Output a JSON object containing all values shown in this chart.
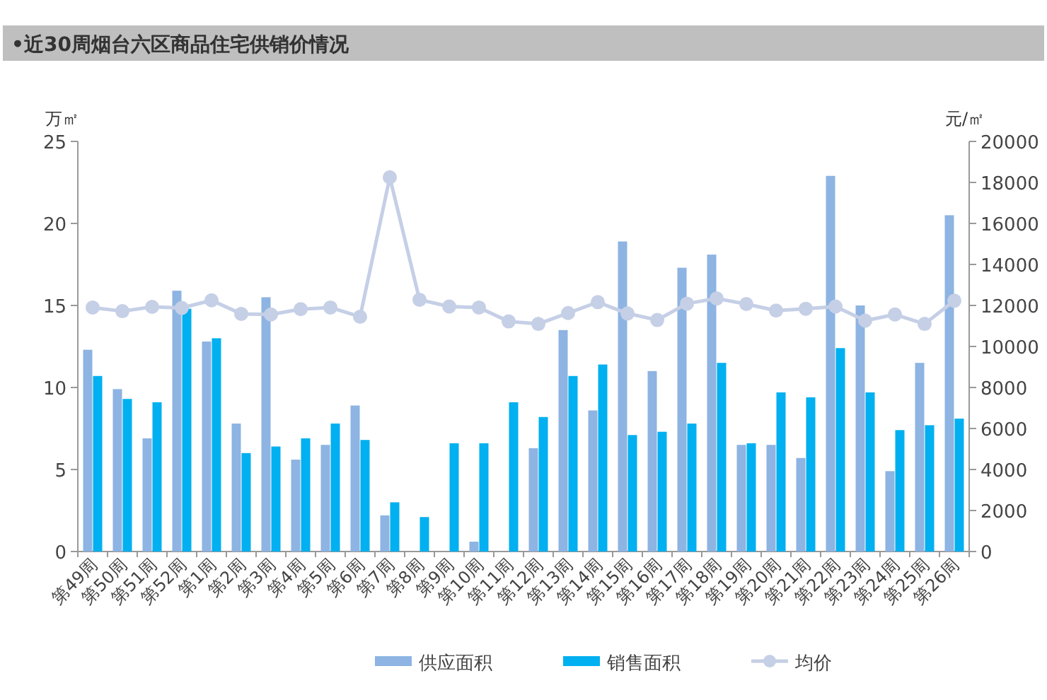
{
  "chart_data": {
    "type": "bar",
    "title": "•近30周烟台六区商品住宅供销价情况",
    "ylabel": "万㎡",
    "y2label": "元/㎡",
    "categories": [
      "第49周",
      "第50周",
      "第51周",
      "第52周",
      "第1周",
      "第2周",
      "第3周",
      "第4周",
      "第5周",
      "第6周",
      "第7周",
      "第8周",
      "第9周",
      "第10周",
      "第11周",
      "第12周",
      "第13周",
      "第14周",
      "第15周",
      "第16周",
      "第17周",
      "第18周",
      "第19周",
      "第20周",
      "第21周",
      "第22周",
      "第23周",
      "第24周",
      "第25周",
      "第26周"
    ],
    "series": [
      {
        "name": "供应面积",
        "color": "#8db4e2",
        "values": [
          12.3,
          9.9,
          6.9,
          15.9,
          12.8,
          7.8,
          15.5,
          5.6,
          6.5,
          8.9,
          2.2,
          null,
          null,
          0.6,
          null,
          6.3,
          13.5,
          8.6,
          18.9,
          11.0,
          17.3,
          18.1,
          6.5,
          6.5,
          5.7,
          22.9,
          15.0,
          4.9,
          11.5,
          20.5
        ]
      },
      {
        "name": "销售面积",
        "color": "#00b0f0",
        "values": [
          10.7,
          9.3,
          9.1,
          14.8,
          13.0,
          6.0,
          6.4,
          6.9,
          7.8,
          6.8,
          3.0,
          2.1,
          6.6,
          6.6,
          9.1,
          8.2,
          10.7,
          11.4,
          7.1,
          7.3,
          7.8,
          11.5,
          6.6,
          9.7,
          9.4,
          12.4,
          9.7,
          7.4,
          7.7,
          8.1
        ]
      },
      {
        "name": "均价",
        "type": "line",
        "axis": "y2",
        "color": "#c5cfe6",
        "values": [
          11900,
          11720,
          11930,
          11880,
          12250,
          11590,
          11560,
          11820,
          11900,
          11450,
          18250,
          12280,
          11950,
          11900,
          11220,
          11100,
          11630,
          12160,
          11610,
          11290,
          12090,
          12340,
          12070,
          11750,
          11840,
          11950,
          11260,
          11560,
          11100,
          12230
        ]
      }
    ],
    "ylim": [
      0,
      25
    ],
    "yticks": [
      0,
      5,
      10,
      15,
      20,
      25
    ],
    "y2lim": [
      0,
      20000
    ],
    "y2ticks": [
      0,
      2000,
      4000,
      6000,
      8000,
      10000,
      12000,
      14000,
      16000,
      18000,
      20000
    ],
    "marker": "circle",
    "legend": "bottom",
    "grid": false
  }
}
